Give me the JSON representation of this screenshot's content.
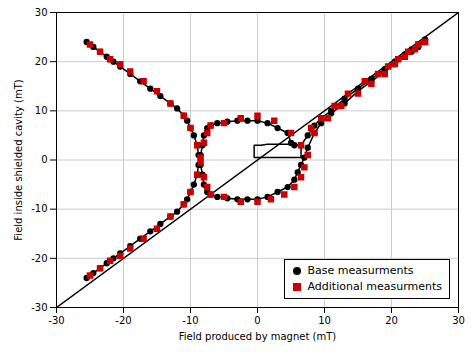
{
  "chart_data": {
    "type": "line",
    "xlabel": "Field produced by magnet (mT)",
    "ylabel": "Field inside shielded cavity (mT)",
    "xlim": [
      -30,
      30
    ],
    "ylim": [
      -30,
      30
    ],
    "xticks": [
      -30,
      -20,
      -10,
      0,
      10,
      20,
      30
    ],
    "yticks": [
      -30,
      -20,
      -10,
      0,
      10,
      20,
      30
    ],
    "grid": true,
    "legend": "lower right",
    "series": [
      {
        "type": "line",
        "marker": "none",
        "line_style": "solid",
        "color": "#000000",
        "x": [
          -30,
          30
        ],
        "values": [
          -30,
          30
        ]
      },
      {
        "name": "Base measurments",
        "type": "line",
        "marker": "circle",
        "line_style": "solid",
        "color": "#000000",
        "x": [
          -25.5,
          -24.5,
          -23.5,
          -22.5,
          -21.5,
          -20.5,
          -19.0,
          -17.5,
          -16.0,
          -14.5,
          -13.0,
          -12.0,
          -11.0,
          -10.5,
          -10.0,
          -9.5,
          -9.0,
          -8.8,
          -8.5,
          -8.2,
          -8.0,
          -7.5,
          -7.0,
          -6.0,
          -4.5,
          -3.0,
          -1.5,
          0.0,
          1.5,
          3.0,
          4.5,
          5.0,
          5.5,
          6.5,
          7.5,
          8.5,
          9.5,
          11.0,
          13.0,
          15.0,
          17.0,
          19.0,
          20.5,
          22.0,
          23.0,
          24.0,
          25.0,
          25.0,
          24.0,
          23.0,
          22.0,
          20.5,
          19.0,
          17.0,
          15.0,
          13.0,
          11.0,
          9.5,
          8.5,
          7.5,
          7.0,
          6.5,
          6.0,
          5.5,
          4.5,
          3.0,
          1.5,
          0.0,
          -1.5,
          -3.0,
          -4.5,
          -6.0,
          -7.0,
          -7.5,
          -8.0,
          -8.2,
          -8.5,
          -8.8,
          -9.0,
          -9.5,
          -10.0,
          -10.5,
          -11.0,
          -12.0,
          -13.0,
          -14.5,
          -16.0,
          -17.5,
          -19.0,
          -20.5,
          -21.5,
          -22.5,
          -23.5,
          -24.5,
          -25.5
        ],
        "values": [
          -24.0,
          -23.0,
          -22.0,
          -21.0,
          -20.0,
          -19.0,
          -17.5,
          -16.0,
          -14.5,
          -13.0,
          -11.5,
          -10.5,
          -9.0,
          -8.0,
          -6.5,
          -5.0,
          -3.0,
          -1.0,
          1.0,
          3.0,
          5.0,
          6.5,
          7.0,
          7.5,
          7.8,
          8.0,
          8.0,
          8.0,
          7.5,
          6.5,
          5.5,
          3.5,
          3.0,
          3.0,
          5.0,
          7.0,
          8.5,
          10.0,
          12.5,
          14.5,
          16.5,
          18.5,
          20.0,
          21.5,
          22.5,
          23.5,
          24.5,
          24.5,
          23.0,
          22.0,
          21.0,
          19.5,
          18.0,
          16.0,
          14.0,
          11.5,
          9.5,
          7.5,
          5.5,
          2.5,
          0.5,
          -1.0,
          -2.5,
          -4.0,
          -5.5,
          -6.5,
          -7.5,
          -8.0,
          -8.0,
          -8.0,
          -7.8,
          -7.5,
          -7.0,
          -6.5,
          -5.0,
          -3.0,
          -1.0,
          1.0,
          3.0,
          5.0,
          6.5,
          8.0,
          9.0,
          10.5,
          11.5,
          13.0,
          14.5,
          16.0,
          17.5,
          19.0,
          20.0,
          21.0,
          22.0,
          23.0,
          24.0
        ]
      },
      {
        "type": "loop",
        "marker": "none",
        "line_style": "solid",
        "color": "#000000",
        "x": [
          -0.5,
          0.5,
          1.5,
          2.5,
          3.5,
          4.5,
          5.5,
          6.5,
          6.5,
          5.5,
          4.5,
          3.5,
          2.5,
          1.5,
          0.5,
          -0.5
        ],
        "values": [
          3.0,
          3.0,
          3.2,
          3.2,
          3.2,
          3.2,
          3.0,
          3.0,
          0.5,
          0.5,
          0.5,
          0.5,
          0.5,
          0.5,
          0.5,
          0.5
        ]
      },
      {
        "name": "Additional measurments",
        "type": "scatter",
        "marker": "square",
        "color": "#cc0000",
        "x": [
          -25.0,
          -23.5,
          -22.0,
          -20.5,
          -19.0,
          -17.0,
          -15.0,
          -13.0,
          -11.0,
          -10.0,
          -9.0,
          -8.5,
          -8.0,
          -7.5,
          -7.0,
          -5.0,
          -2.5,
          0.0,
          2.5,
          5.0,
          6.5,
          8.0,
          9.5,
          11.5,
          13.5,
          16.0,
          18.0,
          19.5,
          21.0,
          22.5,
          24.0,
          25.0,
          25.0,
          23.5,
          22.0,
          20.5,
          19.0,
          17.0,
          15.0,
          12.5,
          10.5,
          8.5,
          7.5,
          7.0,
          6.5,
          5.5,
          4.0,
          2.0,
          0.0,
          -2.5,
          -5.0,
          -7.0,
          -7.5,
          -8.0,
          -8.5,
          -9.0,
          -10.0,
          -11.0,
          -13.0,
          -15.0,
          -17.0,
          -19.0,
          -20.5,
          -22.0,
          -23.5,
          -25.0
        ],
        "values": [
          -23.5,
          -22.0,
          -20.5,
          -19.5,
          -18.0,
          -16.0,
          -14.0,
          -11.5,
          -9.0,
          -6.5,
          -3.0,
          0.5,
          3.5,
          5.5,
          7.0,
          7.5,
          8.5,
          9.0,
          8.0,
          5.5,
          3.0,
          6.5,
          8.5,
          11.0,
          13.5,
          16.0,
          17.5,
          19.0,
          20.5,
          22.0,
          23.5,
          24.0,
          24.0,
          22.5,
          21.0,
          19.5,
          17.5,
          15.5,
          13.5,
          11.0,
          8.5,
          5.5,
          1.0,
          -1.5,
          -3.5,
          -5.5,
          -7.0,
          -8.0,
          -8.5,
          -8.5,
          -7.5,
          -7.0,
          -5.5,
          -3.5,
          -0.5,
          3.0,
          6.5,
          9.0,
          11.5,
          14.0,
          16.0,
          18.0,
          19.5,
          20.5,
          22.0,
          23.5
        ]
      }
    ]
  }
}
